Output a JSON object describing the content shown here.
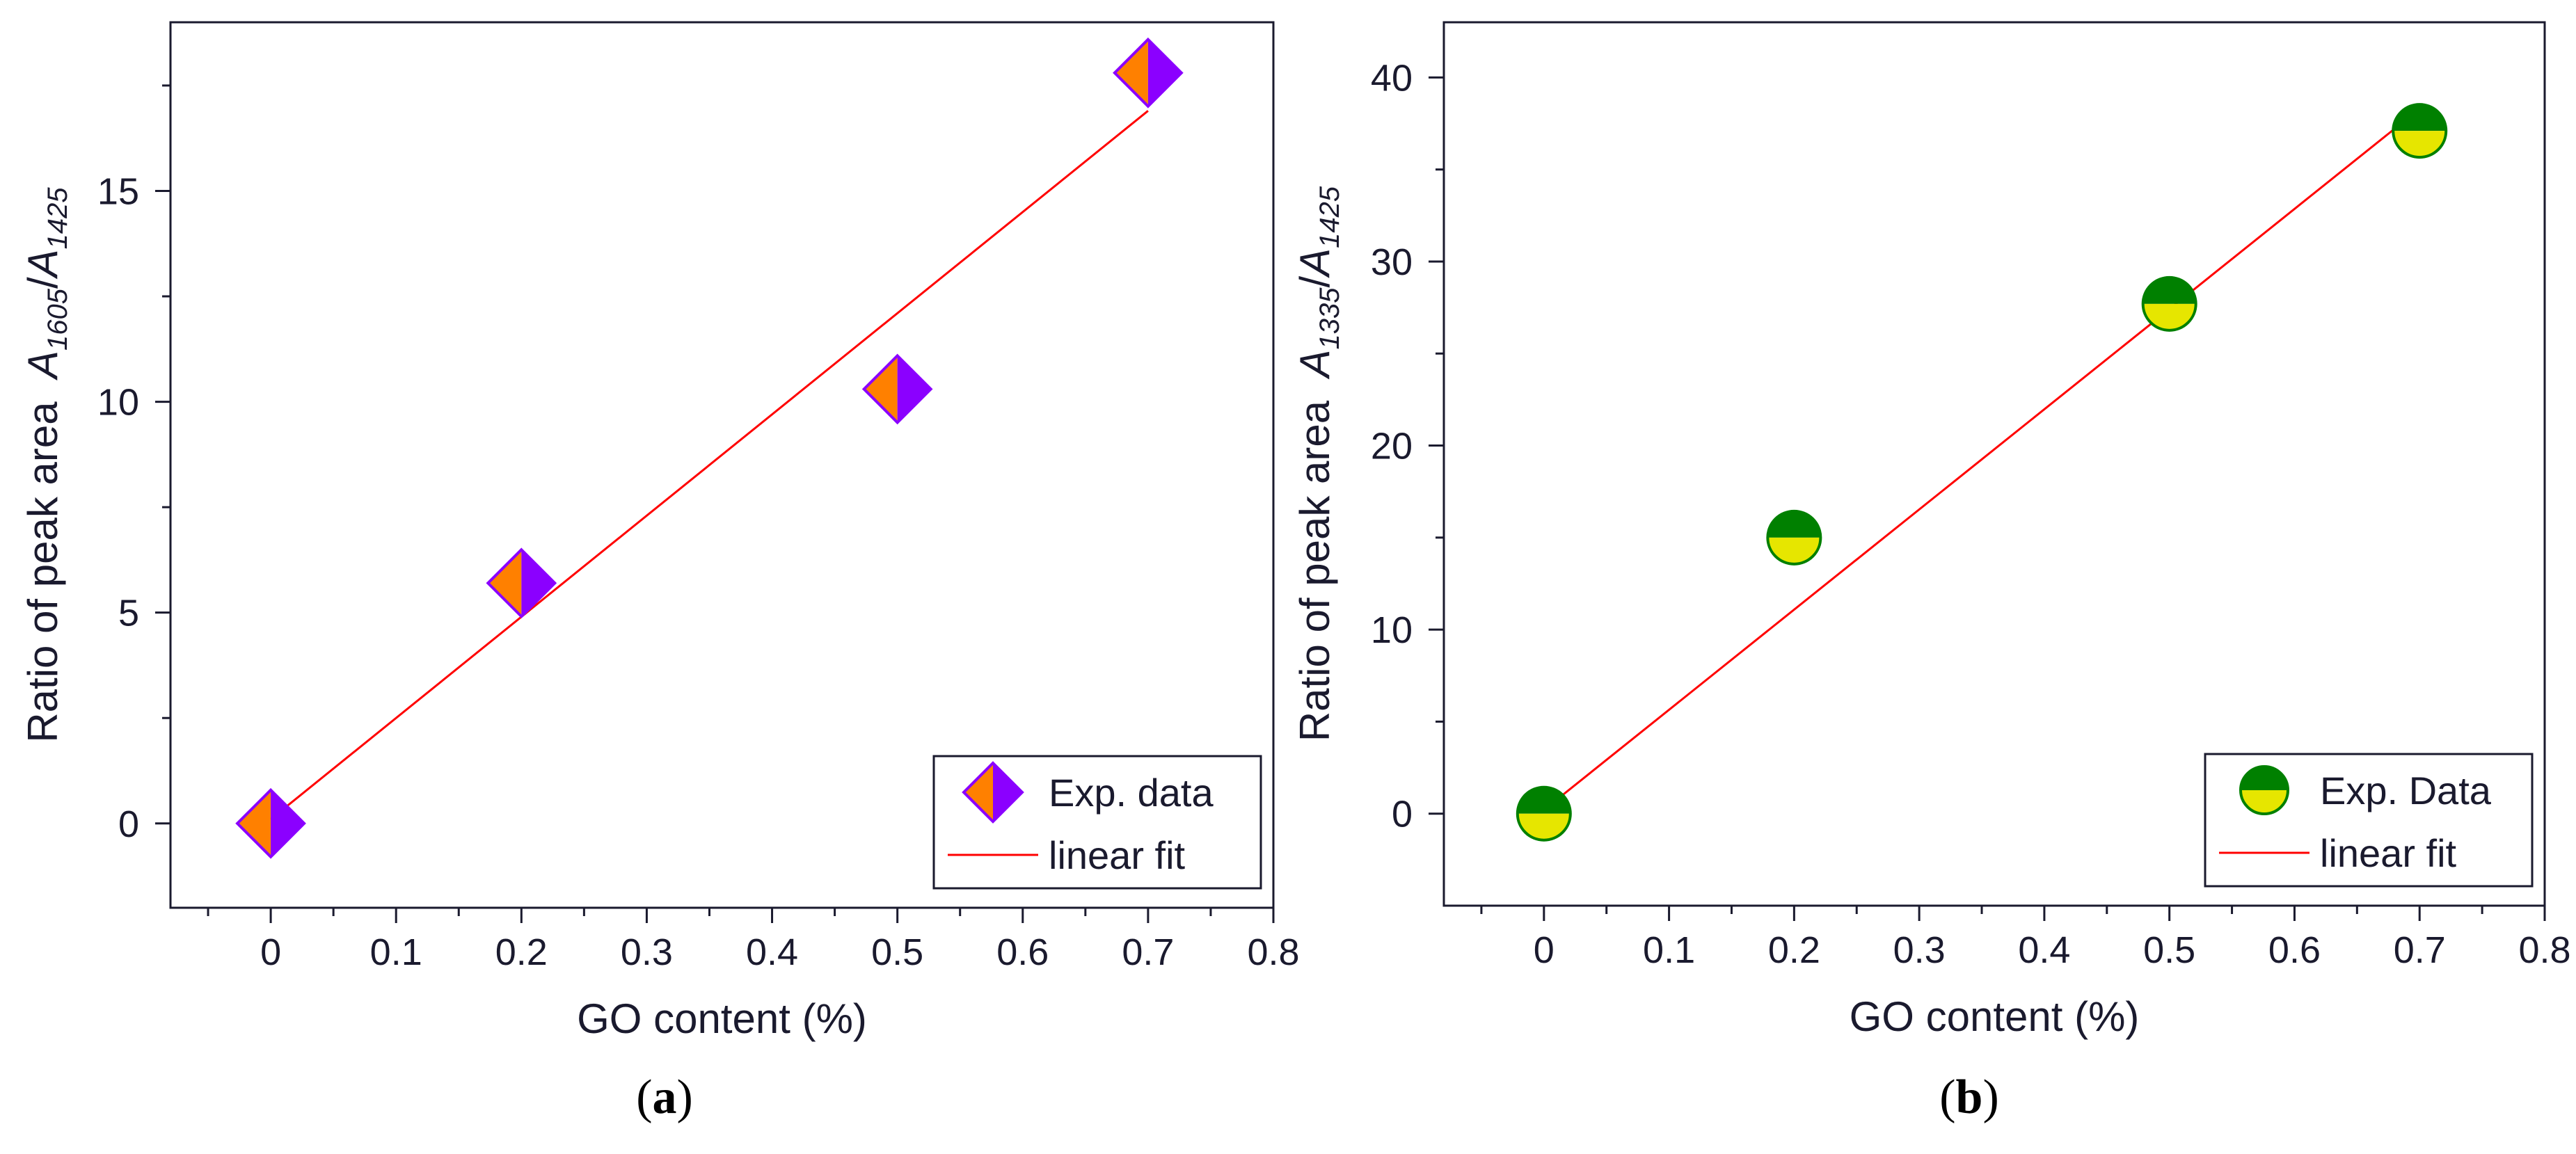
{
  "colors": {
    "axis": "#1a1a2e",
    "fit_line": "#ff0000",
    "diamond_left": "#ff8000",
    "diamond_right": "#8b00ff",
    "circle_top": "#008000",
    "circle_bottom": "#e6e600"
  },
  "chart_data": [
    {
      "type": "scatter",
      "panel_label": "a",
      "xlabel": "GO content (%)",
      "ylabel_prefix": "Ratio of peak area  ",
      "ylabel_num_sym": "A",
      "ylabel_num_sub": "1605",
      "ylabel_sep": "/",
      "ylabel_den_sym": "A",
      "ylabel_den_sub": "1425",
      "xlim": [
        -0.08,
        0.8
      ],
      "ylim": [
        -2,
        19
      ],
      "xticks": [
        0,
        0.1,
        0.2,
        0.3,
        0.4,
        0.5,
        0.6,
        0.7,
        0.8
      ],
      "xtick_labels": [
        "0",
        "0.1",
        "0.2",
        "0.3",
        "0.4",
        "0.5",
        "0.6",
        "0.7",
        "0.8"
      ],
      "yticks": [
        0,
        5,
        10,
        15
      ],
      "ytick_labels": [
        "0",
        "5",
        "10",
        "15"
      ],
      "series": [
        {
          "name": "Exp. data",
          "marker": "diamond",
          "x": [
            0,
            0.2,
            0.5,
            0.7
          ],
          "y": [
            0,
            5.7,
            10.3,
            17.8
          ]
        },
        {
          "name": "linear fit",
          "marker": "line",
          "x": [
            0,
            0.7
          ],
          "y": [
            0.1,
            16.9
          ]
        }
      ],
      "legend": {
        "position": "bottom-right"
      }
    },
    {
      "type": "scatter",
      "panel_label": "b",
      "xlabel": "GO content (%)",
      "ylabel_prefix": "Ratio of peak area  ",
      "ylabel_num_sym": "A",
      "ylabel_num_sub": "1335",
      "ylabel_sep": "/",
      "ylabel_den_sym": "A",
      "ylabel_den_sub": "1425",
      "xlim": [
        -0.08,
        0.8
      ],
      "ylim": [
        -5,
        43
      ],
      "xticks": [
        0,
        0.1,
        0.2,
        0.3,
        0.4,
        0.5,
        0.6,
        0.7,
        0.8
      ],
      "xtick_labels": [
        "0",
        "0.1",
        "0.2",
        "0.3",
        "0.4",
        "0.5",
        "0.6",
        "0.7",
        "0.8"
      ],
      "yticks": [
        0,
        10,
        20,
        30,
        40
      ],
      "ytick_labels": [
        "0",
        "10",
        "20",
        "30",
        "40"
      ],
      "series": [
        {
          "name": "Exp. Data",
          "marker": "circle",
          "x": [
            0,
            0.2,
            0.5,
            0.7
          ],
          "y": [
            0,
            15,
            27.7,
            37.1
          ]
        },
        {
          "name": "linear fit",
          "marker": "line",
          "x": [
            0,
            0.7
          ],
          "y": [
            0.2,
            38.3
          ]
        }
      ],
      "legend": {
        "position": "bottom-right"
      }
    }
  ]
}
